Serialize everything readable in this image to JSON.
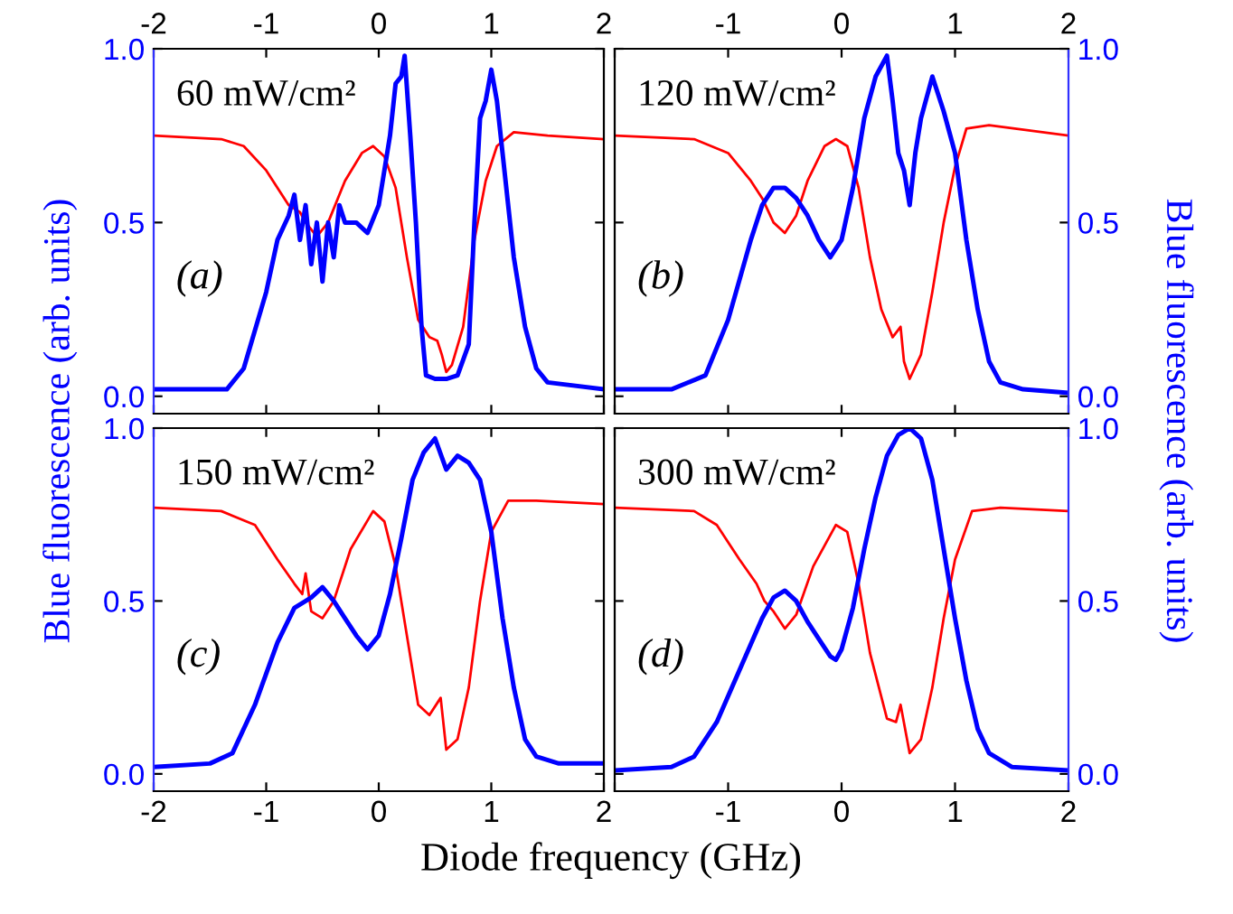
{
  "chart_data": [
    {
      "type": "line",
      "annotations": [
        "60 mW/cm²",
        "(a)"
      ],
      "ylabel": "Blue fluorescence (arb. units)",
      "xlim": [
        -2,
        2
      ],
      "xticks": [
        -2,
        -1,
        0,
        1,
        2
      ],
      "ylim": [
        -0.05,
        1.0
      ],
      "yticks": [
        {
          "value": 0,
          "label": "0.0"
        },
        {
          "value": 0.5,
          "label": "0.5"
        },
        {
          "value": 1,
          "label": "1.0"
        }
      ],
      "series": [
        {
          "color": "#ff0000",
          "x": [
            -2,
            -1.4,
            -1.2,
            -1.0,
            -0.8,
            -0.7,
            -0.65,
            -0.55,
            -0.45,
            -0.3,
            -0.15,
            -0.05,
            0.05,
            0.15,
            0.25,
            0.35,
            0.45,
            0.52,
            0.56,
            0.6,
            0.65,
            0.75,
            0.85,
            0.95,
            1.05,
            1.2,
            1.5,
            2
          ],
          "values": [
            0.75,
            0.74,
            0.72,
            0.65,
            0.55,
            0.53,
            0.5,
            0.46,
            0.5,
            0.62,
            0.7,
            0.72,
            0.69,
            0.6,
            0.4,
            0.22,
            0.17,
            0.16,
            0.12,
            0.07,
            0.09,
            0.2,
            0.45,
            0.62,
            0.72,
            0.76,
            0.75,
            0.74
          ]
        },
        {
          "color": "#0000ff",
          "x": [
            -2,
            -1.35,
            -1.2,
            -1.0,
            -0.9,
            -0.8,
            -0.75,
            -0.7,
            -0.65,
            -0.6,
            -0.55,
            -0.5,
            -0.45,
            -0.4,
            -0.35,
            -0.3,
            -0.2,
            -0.1,
            0,
            0.1,
            0.15,
            0.2,
            0.23,
            0.28,
            0.33,
            0.38,
            0.42,
            0.5,
            0.6,
            0.7,
            0.8,
            0.85,
            0.9,
            0.95,
            1.0,
            1.05,
            1.1,
            1.2,
            1.3,
            1.4,
            1.5,
            2
          ],
          "values": [
            0.02,
            0.02,
            0.08,
            0.3,
            0.45,
            0.52,
            0.58,
            0.45,
            0.55,
            0.38,
            0.5,
            0.33,
            0.5,
            0.4,
            0.55,
            0.5,
            0.5,
            0.47,
            0.55,
            0.75,
            0.9,
            0.92,
            0.98,
            0.75,
            0.5,
            0.2,
            0.06,
            0.05,
            0.05,
            0.06,
            0.15,
            0.5,
            0.8,
            0.85,
            0.94,
            0.85,
            0.7,
            0.4,
            0.2,
            0.08,
            0.04,
            0.02
          ]
        }
      ]
    },
    {
      "type": "line",
      "annotations": [
        "120 mW/cm²",
        "(b)"
      ],
      "ylabel": "Blue fluorescence (arb. units)",
      "xlim": [
        -2,
        2
      ],
      "xticks": [
        {
          "value": -2,
          "label": null
        },
        -1,
        0,
        1,
        2
      ],
      "ylim": [
        -0.05,
        1.0
      ],
      "yticks": [
        {
          "value": 0,
          "label": "0.0"
        },
        {
          "value": 0.5,
          "label": "0.5"
        },
        {
          "value": 1,
          "label": "1.0"
        }
      ],
      "series": [
        {
          "color": "#ff0000",
          "x": [
            -2,
            -1.3,
            -1.0,
            -0.8,
            -0.7,
            -0.6,
            -0.5,
            -0.4,
            -0.3,
            -0.15,
            -0.05,
            0.05,
            0.15,
            0.25,
            0.35,
            0.45,
            0.52,
            0.55,
            0.6,
            0.7,
            0.8,
            0.9,
            1.0,
            1.1,
            1.3,
            2
          ],
          "values": [
            0.75,
            0.74,
            0.7,
            0.62,
            0.57,
            0.5,
            0.47,
            0.52,
            0.62,
            0.72,
            0.74,
            0.72,
            0.6,
            0.4,
            0.25,
            0.17,
            0.2,
            0.1,
            0.05,
            0.12,
            0.3,
            0.5,
            0.66,
            0.77,
            0.78,
            0.75
          ]
        },
        {
          "color": "#0000ff",
          "x": [
            -2,
            -1.5,
            -1.2,
            -1.0,
            -0.8,
            -0.7,
            -0.6,
            -0.5,
            -0.4,
            -0.3,
            -0.2,
            -0.1,
            0,
            0.1,
            0.2,
            0.3,
            0.4,
            0.45,
            0.5,
            0.55,
            0.6,
            0.65,
            0.7,
            0.8,
            0.9,
            1.0,
            1.1,
            1.2,
            1.3,
            1.4,
            1.6,
            2
          ],
          "values": [
            0.02,
            0.02,
            0.06,
            0.22,
            0.45,
            0.55,
            0.6,
            0.6,
            0.57,
            0.52,
            0.45,
            0.4,
            0.45,
            0.6,
            0.8,
            0.92,
            0.98,
            0.85,
            0.7,
            0.65,
            0.55,
            0.7,
            0.8,
            0.92,
            0.82,
            0.7,
            0.45,
            0.25,
            0.1,
            0.04,
            0.02,
            0.01
          ]
        }
      ]
    },
    {
      "type": "line",
      "annotations": [
        "150 mW/cm²",
        "(c)"
      ],
      "xlabel": "Diode frequency (GHz)",
      "xlim": [
        -2,
        2
      ],
      "xticks": [
        -2,
        -1,
        0,
        1,
        2
      ],
      "ylim": [
        -0.05,
        1.0
      ],
      "yticks": [
        {
          "value": 0,
          "label": "0.0"
        },
        {
          "value": 0.5,
          "label": "0.5"
        },
        {
          "value": 1,
          "label": "1.0"
        }
      ],
      "series": [
        {
          "color": "#ff0000",
          "x": [
            -2,
            -1.4,
            -1.1,
            -0.9,
            -0.75,
            -0.68,
            -0.65,
            -0.6,
            -0.5,
            -0.4,
            -0.25,
            -0.05,
            0.05,
            0.15,
            0.25,
            0.35,
            0.45,
            0.55,
            0.6,
            0.7,
            0.8,
            0.9,
            1.0,
            1.15,
            1.4,
            2
          ],
          "values": [
            0.77,
            0.76,
            0.72,
            0.62,
            0.55,
            0.52,
            0.58,
            0.47,
            0.45,
            0.5,
            0.65,
            0.76,
            0.73,
            0.6,
            0.4,
            0.2,
            0.17,
            0.22,
            0.07,
            0.1,
            0.25,
            0.5,
            0.7,
            0.79,
            0.79,
            0.78
          ]
        },
        {
          "color": "#0000ff",
          "x": [
            -2,
            -1.5,
            -1.3,
            -1.1,
            -0.9,
            -0.75,
            -0.6,
            -0.5,
            -0.4,
            -0.3,
            -0.2,
            -0.1,
            0,
            0.1,
            0.2,
            0.3,
            0.4,
            0.5,
            0.6,
            0.7,
            0.8,
            0.9,
            1.0,
            1.1,
            1.2,
            1.3,
            1.4,
            1.6,
            2
          ],
          "values": [
            0.02,
            0.03,
            0.06,
            0.2,
            0.38,
            0.48,
            0.51,
            0.54,
            0.5,
            0.45,
            0.4,
            0.36,
            0.4,
            0.52,
            0.68,
            0.85,
            0.93,
            0.97,
            0.88,
            0.92,
            0.9,
            0.85,
            0.7,
            0.45,
            0.25,
            0.1,
            0.05,
            0.03,
            0.03
          ]
        }
      ]
    },
    {
      "type": "line",
      "annotations": [
        "300 mW/cm²",
        "(d)"
      ],
      "xlim": [
        -2,
        2
      ],
      "xticks": [
        {
          "value": -2,
          "label": null
        },
        -1,
        0,
        1,
        2
      ],
      "ylim": [
        -0.05,
        1.0
      ],
      "yticks": [
        {
          "value": 0,
          "label": "0.0"
        },
        {
          "value": 0.5,
          "label": "0.5"
        },
        {
          "value": 1,
          "label": "1.0"
        }
      ],
      "series": [
        {
          "color": "#ff0000",
          "x": [
            -2,
            -1.3,
            -1.1,
            -0.9,
            -0.75,
            -0.68,
            -0.6,
            -0.5,
            -0.4,
            -0.25,
            -0.05,
            0.05,
            0.15,
            0.25,
            0.4,
            0.48,
            0.52,
            0.6,
            0.7,
            0.8,
            0.9,
            1.0,
            1.15,
            1.4,
            2
          ],
          "values": [
            0.77,
            0.76,
            0.72,
            0.62,
            0.55,
            0.5,
            0.47,
            0.42,
            0.46,
            0.6,
            0.72,
            0.7,
            0.55,
            0.35,
            0.16,
            0.15,
            0.2,
            0.06,
            0.1,
            0.25,
            0.45,
            0.62,
            0.76,
            0.77,
            0.76
          ]
        },
        {
          "color": "#0000ff",
          "x": [
            -2,
            -1.5,
            -1.3,
            -1.1,
            -0.9,
            -0.7,
            -0.6,
            -0.5,
            -0.4,
            -0.3,
            -0.2,
            -0.1,
            -0.05,
            0,
            0.1,
            0.2,
            0.3,
            0.4,
            0.5,
            0.6,
            0.7,
            0.8,
            0.9,
            1.0,
            1.1,
            1.2,
            1.3,
            1.5,
            2
          ],
          "values": [
            0.01,
            0.02,
            0.05,
            0.15,
            0.3,
            0.45,
            0.51,
            0.53,
            0.5,
            0.44,
            0.39,
            0.34,
            0.33,
            0.36,
            0.48,
            0.65,
            0.8,
            0.92,
            0.98,
            1.0,
            0.97,
            0.85,
            0.65,
            0.45,
            0.27,
            0.13,
            0.06,
            0.02,
            0.01
          ]
        }
      ]
    }
  ]
}
